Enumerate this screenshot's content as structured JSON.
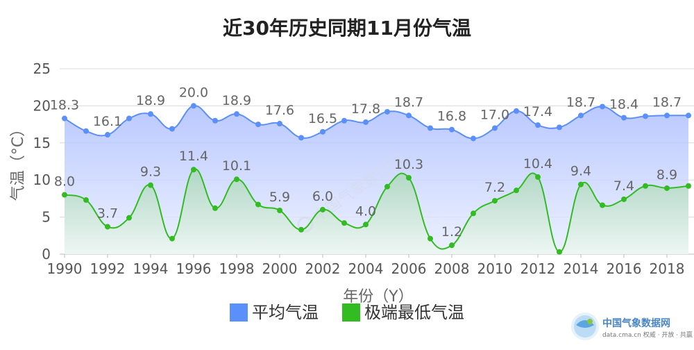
{
  "chart_data": {
    "type": "line",
    "title": "近30年历史同期11月份气温",
    "xlabel": "年份（Y）",
    "ylabel": "气温（°C）",
    "ylim": [
      0,
      25
    ],
    "yticks": [
      0,
      5,
      10,
      15,
      20,
      25
    ],
    "x": [
      1990,
      1991,
      1992,
      1993,
      1994,
      1995,
      1996,
      1997,
      1998,
      1999,
      2000,
      2001,
      2002,
      2003,
      2004,
      2005,
      2006,
      2007,
      2008,
      2009,
      2010,
      2011,
      2012,
      2013,
      2014,
      2015,
      2016,
      2017,
      2018,
      2019
    ],
    "xtick_labels": [
      "1990",
      "1992",
      "1994",
      "1996",
      "1998",
      "2000",
      "2002",
      "2004",
      "2006",
      "2008",
      "2010",
      "2012",
      "2014",
      "2016",
      "2018"
    ],
    "grid": true,
    "legend_position": "bottom",
    "series": [
      {
        "name": "平均气温",
        "color": "#5b8ff9",
        "fill": "#c6d4ff",
        "values": [
          18.3,
          16.6,
          16.1,
          18.3,
          18.9,
          16.9,
          20.0,
          18.0,
          18.9,
          17.5,
          17.6,
          15.7,
          16.5,
          18.0,
          17.8,
          19.2,
          18.7,
          17.0,
          16.8,
          15.6,
          17.0,
          19.3,
          17.4,
          17.1,
          18.7,
          19.9,
          18.4,
          18.6,
          18.7,
          18.7
        ],
        "labels": [
          {
            "year": 1990,
            "text": "18.3"
          },
          {
            "year": 1992,
            "text": "16.1"
          },
          {
            "year": 1994,
            "text": "18.9"
          },
          {
            "year": 1996,
            "text": "20.0"
          },
          {
            "year": 1998,
            "text": "18.9"
          },
          {
            "year": 2000,
            "text": "17.6"
          },
          {
            "year": 2002,
            "text": "16.5"
          },
          {
            "year": 2004,
            "text": "17.8"
          },
          {
            "year": 2006,
            "text": "18.7"
          },
          {
            "year": 2008,
            "text": "16.8"
          },
          {
            "year": 2010,
            "text": "17.0"
          },
          {
            "year": 2012,
            "text": "17.4"
          },
          {
            "year": 2014,
            "text": "18.7"
          },
          {
            "year": 2016,
            "text": "18.4"
          },
          {
            "year": 2018,
            "text": "18.7"
          }
        ]
      },
      {
        "name": "极端最低气温",
        "color": "#33bb22",
        "fill": "#cfe7d8",
        "values": [
          8.0,
          7.3,
          3.7,
          4.9,
          9.3,
          2.1,
          11.4,
          6.2,
          10.1,
          6.7,
          5.9,
          3.3,
          6.0,
          4.2,
          4.0,
          9.1,
          10.3,
          2.1,
          1.2,
          5.5,
          7.2,
          8.6,
          10.4,
          0.3,
          9.4,
          6.6,
          7.4,
          9.2,
          8.9,
          9.2
        ],
        "labels": [
          {
            "year": 1990,
            "text": "8.0"
          },
          {
            "year": 1992,
            "text": "3.7"
          },
          {
            "year": 1994,
            "text": "9.3"
          },
          {
            "year": 1996,
            "text": "11.4"
          },
          {
            "year": 1998,
            "text": "10.1"
          },
          {
            "year": 2000,
            "text": "5.9"
          },
          {
            "year": 2002,
            "text": "6.0"
          },
          {
            "year": 2004,
            "text": "4.0"
          },
          {
            "year": 2006,
            "text": "10.3"
          },
          {
            "year": 2008,
            "text": "1.2"
          },
          {
            "year": 2010,
            "text": "7.2"
          },
          {
            "year": 2012,
            "text": "10.4"
          },
          {
            "year": 2014,
            "text": "9.4"
          },
          {
            "year": 2016,
            "text": "7.4"
          },
          {
            "year": 2018,
            "text": "8.9"
          }
        ]
      }
    ]
  },
  "watermark": {
    "logo_icon": "cma-globe-icon",
    "name": "中国气象数据网",
    "url_line": "data.cma.cn 权威 · 开放 · 共赢",
    "background_text": "中国气象数据网"
  }
}
